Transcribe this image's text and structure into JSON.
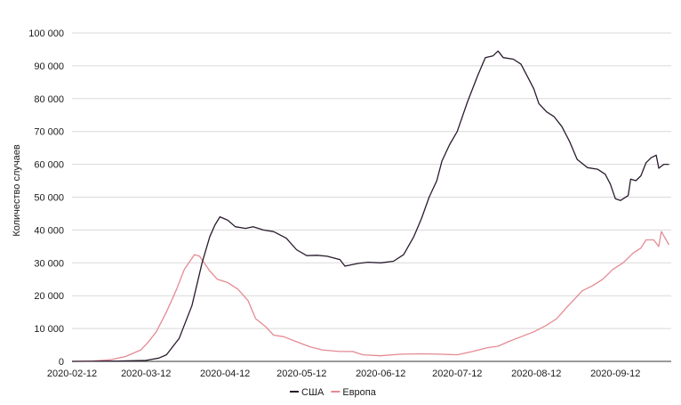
{
  "chart_data": {
    "type": "line",
    "xlabel": "",
    "ylabel": "Количество случаев",
    "ylim": [
      0,
      100000
    ],
    "y_ticks": [
      0,
      10000,
      20000,
      30000,
      40000,
      50000,
      60000,
      70000,
      80000,
      90000,
      100000
    ],
    "y_tick_labels": [
      "0",
      "10 000",
      "20 000",
      "30 000",
      "40 000",
      "50 000",
      "60 000",
      "70 000",
      "80 000",
      "90 000",
      "100 000"
    ],
    "x_tick_labels": [
      "2020-02-12",
      "2020-03-12",
      "2020-04-12",
      "2020-05-12",
      "2020-06-12",
      "2020-07-12",
      "2020-08-12",
      "2020-09-12"
    ],
    "xlim": [
      "2020-02-12",
      "2020-09-29"
    ],
    "grid": "horizontal",
    "legend_position": "bottom-center",
    "colors": {
      "США": "#2a1a2e",
      "Европа": "#e58a93"
    },
    "series": [
      {
        "name": "США",
        "points": [
          [
            "2020-02-12",
            0
          ],
          [
            "2020-03-01",
            100
          ],
          [
            "2020-03-12",
            300
          ],
          [
            "2020-03-17",
            1000
          ],
          [
            "2020-03-20",
            2000
          ],
          [
            "2020-03-25",
            7000
          ],
          [
            "2020-03-30",
            17000
          ],
          [
            "2020-04-03",
            30000
          ],
          [
            "2020-04-06",
            38000
          ],
          [
            "2020-04-08",
            41500
          ],
          [
            "2020-04-10",
            44000
          ],
          [
            "2020-04-13",
            43000
          ],
          [
            "2020-04-16",
            41000
          ],
          [
            "2020-04-20",
            40500
          ],
          [
            "2020-04-23",
            41000
          ],
          [
            "2020-04-27",
            40000
          ],
          [
            "2020-05-01",
            39500
          ],
          [
            "2020-05-06",
            37500
          ],
          [
            "2020-05-10",
            34000
          ],
          [
            "2020-05-14",
            32200
          ],
          [
            "2020-05-18",
            32300
          ],
          [
            "2020-05-22",
            32000
          ],
          [
            "2020-05-27",
            31000
          ],
          [
            "2020-05-29",
            29000
          ],
          [
            "2020-06-03",
            29800
          ],
          [
            "2020-06-07",
            30200
          ],
          [
            "2020-06-12",
            30000
          ],
          [
            "2020-06-17",
            30500
          ],
          [
            "2020-06-21",
            32500
          ],
          [
            "2020-06-25",
            38000
          ],
          [
            "2020-06-28",
            43500
          ],
          [
            "2020-07-01",
            50000
          ],
          [
            "2020-07-04",
            55000
          ],
          [
            "2020-07-06",
            61000
          ],
          [
            "2020-07-09",
            66000
          ],
          [
            "2020-07-12",
            70000
          ],
          [
            "2020-07-16",
            79000
          ],
          [
            "2020-07-20",
            87000
          ],
          [
            "2020-07-23",
            92500
          ],
          [
            "2020-07-26",
            93000
          ],
          [
            "2020-07-28",
            94500
          ],
          [
            "2020-07-30",
            92500
          ],
          [
            "2020-08-03",
            92000
          ],
          [
            "2020-08-06",
            90500
          ],
          [
            "2020-08-09",
            86000
          ],
          [
            "2020-08-11",
            83000
          ],
          [
            "2020-08-13",
            78500
          ],
          [
            "2020-08-16",
            76000
          ],
          [
            "2020-08-19",
            74500
          ],
          [
            "2020-08-22",
            71500
          ],
          [
            "2020-08-25",
            67000
          ],
          [
            "2020-08-28",
            61500
          ],
          [
            "2020-09-01",
            59000
          ],
          [
            "2020-09-05",
            58500
          ],
          [
            "2020-09-08",
            57000
          ],
          [
            "2020-09-10",
            54000
          ],
          [
            "2020-09-12",
            49500
          ],
          [
            "2020-09-14",
            49000
          ],
          [
            "2020-09-17",
            50500
          ],
          [
            "2020-09-18",
            55500
          ],
          [
            "2020-09-20",
            55000
          ],
          [
            "2020-09-22",
            56500
          ],
          [
            "2020-09-24",
            60500
          ],
          [
            "2020-09-26",
            62000
          ],
          [
            "2020-09-28",
            62800
          ],
          [
            "2020-09-29",
            58800
          ],
          [
            "2020-09-31",
            60000
          ],
          [
            "2020-09-33",
            60000
          ]
        ]
      },
      {
        "name": "Европа",
        "points": [
          [
            "2020-02-12",
            0
          ],
          [
            "2020-02-20",
            100
          ],
          [
            "2020-02-27",
            500
          ],
          [
            "2020-03-04",
            1500
          ],
          [
            "2020-03-10",
            3500
          ],
          [
            "2020-03-13",
            6000
          ],
          [
            "2020-03-16",
            9000
          ],
          [
            "2020-03-20",
            15000
          ],
          [
            "2020-03-24",
            22000
          ],
          [
            "2020-03-27",
            28000
          ],
          [
            "2020-03-31",
            32500
          ],
          [
            "2020-04-02",
            32000
          ],
          [
            "2020-04-06",
            27500
          ],
          [
            "2020-04-09",
            25000
          ],
          [
            "2020-04-13",
            24000
          ],
          [
            "2020-04-17",
            22000
          ],
          [
            "2020-04-21",
            18500
          ],
          [
            "2020-04-24",
            13000
          ],
          [
            "2020-04-28",
            10500
          ],
          [
            "2020-05-01",
            8000
          ],
          [
            "2020-05-05",
            7500
          ],
          [
            "2020-05-10",
            6000
          ],
          [
            "2020-05-15",
            4500
          ],
          [
            "2020-05-20",
            3500
          ],
          [
            "2020-05-27",
            3000
          ],
          [
            "2020-06-01",
            3000
          ],
          [
            "2020-06-05",
            2000
          ],
          [
            "2020-06-12",
            1700
          ],
          [
            "2020-06-20",
            2200
          ],
          [
            "2020-06-28",
            2300
          ],
          [
            "2020-07-05",
            2200
          ],
          [
            "2020-07-12",
            2000
          ],
          [
            "2020-07-18",
            3000
          ],
          [
            "2020-07-24",
            4200
          ],
          [
            "2020-07-28",
            4600
          ],
          [
            "2020-08-01",
            6000
          ],
          [
            "2020-08-06",
            7500
          ],
          [
            "2020-08-11",
            9000
          ],
          [
            "2020-08-16",
            11000
          ],
          [
            "2020-08-20",
            13000
          ],
          [
            "2020-08-24",
            16500
          ],
          [
            "2020-08-27",
            19000
          ],
          [
            "2020-08-30",
            21500
          ],
          [
            "2020-09-03",
            23000
          ],
          [
            "2020-09-07",
            25000
          ],
          [
            "2020-09-11",
            28000
          ],
          [
            "2020-09-15",
            30000
          ],
          [
            "2020-09-19",
            33000
          ],
          [
            "2020-09-22",
            34500
          ],
          [
            "2020-09-24",
            37000
          ],
          [
            "2020-09-27",
            37000
          ],
          [
            "2020-09-29",
            35000
          ],
          [
            "2020-09-30",
            39500
          ],
          [
            "2020-09-33",
            35500
          ]
        ]
      }
    ]
  }
}
